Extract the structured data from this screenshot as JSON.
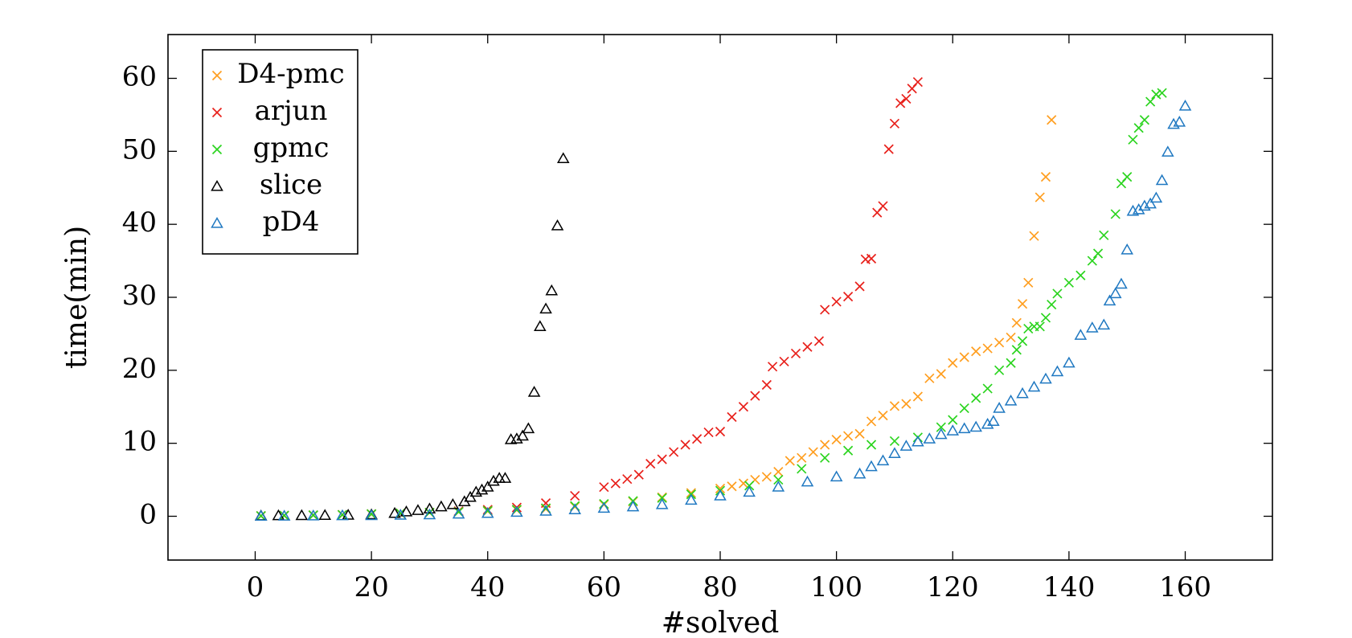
{
  "chart_data": {
    "type": "scatter",
    "title": "",
    "xlabel": "#solved",
    "ylabel": "time(min)",
    "xlim": [
      -15,
      175
    ],
    "ylim": [
      -6,
      66
    ],
    "xticks": [
      0,
      20,
      40,
      60,
      80,
      100,
      120,
      140,
      160
    ],
    "yticks": [
      0,
      10,
      20,
      30,
      40,
      50,
      60
    ],
    "x_tick_labels": [
      "0",
      "20",
      "40",
      "60",
      "80",
      "100",
      "120",
      "140",
      "160"
    ],
    "y_tick_labels": [
      "0",
      "10",
      "20",
      "30",
      "40",
      "50",
      "60"
    ],
    "grid": false,
    "legend_position": "top-left",
    "series": [
      {
        "name": "D4-pmc",
        "color": "#ff9e1f",
        "marker": "cross",
        "x": [
          1,
          5,
          10,
          15,
          20,
          25,
          30,
          35,
          40,
          45,
          50,
          55,
          60,
          65,
          70,
          75,
          80,
          82,
          84,
          86,
          88,
          90,
          92,
          94,
          96,
          98,
          100,
          102,
          104,
          106,
          108,
          110,
          112,
          114,
          116,
          118,
          120,
          122,
          124,
          126,
          128,
          130,
          131,
          132,
          133,
          134,
          135,
          136,
          137
        ],
        "y": [
          0.05,
          0.1,
          0.15,
          0.2,
          0.3,
          0.4,
          0.5,
          0.6,
          0.7,
          0.85,
          1.0,
          1.3,
          1.6,
          2.0,
          2.6,
          3.2,
          3.8,
          4.1,
          4.5,
          5.0,
          5.4,
          6.1,
          7.6,
          8.0,
          8.8,
          9.8,
          10.5,
          11.0,
          11.3,
          13.0,
          13.8,
          15.1,
          15.4,
          16.4,
          18.9,
          19.5,
          21.0,
          21.8,
          22.6,
          23.0,
          23.8,
          24.5,
          26.5,
          29.1,
          32.0,
          38.4,
          43.7,
          46.5,
          54.3
        ]
      },
      {
        "name": "arjun",
        "color": "#e8201b",
        "marker": "cross",
        "x": [
          1,
          5,
          10,
          15,
          20,
          25,
          30,
          35,
          40,
          45,
          50,
          55,
          60,
          62,
          64,
          66,
          68,
          70,
          72,
          74,
          76,
          78,
          80,
          82,
          84,
          86,
          88,
          89,
          91,
          93,
          95,
          97,
          98,
          100,
          102,
          104,
          105,
          106,
          107,
          108,
          109,
          110,
          111,
          112,
          113,
          114
        ],
        "y": [
          0.05,
          0.1,
          0.15,
          0.2,
          0.3,
          0.4,
          0.5,
          0.7,
          0.9,
          1.2,
          1.8,
          2.8,
          4.0,
          4.5,
          5.1,
          5.7,
          7.2,
          7.8,
          8.8,
          9.8,
          10.6,
          11.5,
          11.6,
          13.6,
          15.0,
          16.5,
          18.0,
          20.5,
          21.2,
          22.3,
          23.2,
          24.0,
          28.3,
          29.4,
          30.1,
          31.5,
          35.2,
          35.3,
          41.6,
          42.5,
          50.3,
          53.8,
          56.6,
          57.2,
          58.6,
          59.5
        ]
      },
      {
        "name": "gpmc",
        "color": "#2bd41f",
        "marker": "cross",
        "x": [
          1,
          5,
          10,
          15,
          20,
          25,
          30,
          35,
          40,
          45,
          50,
          55,
          60,
          65,
          70,
          75,
          80,
          85,
          90,
          94,
          98,
          102,
          106,
          110,
          114,
          118,
          120,
          122,
          124,
          126,
          128,
          130,
          131,
          132,
          133,
          134,
          135,
          136,
          137,
          138,
          140,
          142,
          144,
          145,
          146,
          148,
          149,
          150,
          151,
          152,
          153,
          154,
          155,
          156
        ],
        "y": [
          0.05,
          0.1,
          0.15,
          0.2,
          0.3,
          0.4,
          0.5,
          0.6,
          0.75,
          0.9,
          1.1,
          1.4,
          1.7,
          2.1,
          2.5,
          3.0,
          3.5,
          4.2,
          5.0,
          6.5,
          8.0,
          9.0,
          9.8,
          10.3,
          10.8,
          12.2,
          13.2,
          14.8,
          16.2,
          17.5,
          20.0,
          21.0,
          22.8,
          24.0,
          25.7,
          26.0,
          26.0,
          27.2,
          29.0,
          30.5,
          32.0,
          33.0,
          35.0,
          36.0,
          38.5,
          41.4,
          45.6,
          46.5,
          51.6,
          53.2,
          54.3,
          56.8,
          57.8,
          58.0
        ]
      },
      {
        "name": "slice",
        "color": "#000000",
        "marker": "triangle",
        "x": [
          1,
          4,
          8,
          12,
          16,
          20,
          24,
          26,
          28,
          30,
          32,
          34,
          36,
          37,
          38,
          39,
          40,
          41,
          42,
          43,
          44,
          45,
          46,
          47,
          48,
          49,
          50,
          51,
          52,
          53
        ],
        "y": [
          0.05,
          0.08,
          0.1,
          0.12,
          0.15,
          0.2,
          0.4,
          0.6,
          0.8,
          1.0,
          1.3,
          1.6,
          2.0,
          2.6,
          3.3,
          3.6,
          4.0,
          4.8,
          5.2,
          5.2,
          10.5,
          10.6,
          11.0,
          12.0,
          17.0,
          26.0,
          28.4,
          30.9,
          39.8,
          49.0
        ]
      },
      {
        "name": "pD4",
        "color": "#1f78c1",
        "marker": "triangle",
        "x": [
          1,
          5,
          10,
          15,
          20,
          25,
          30,
          35,
          40,
          45,
          50,
          55,
          60,
          65,
          70,
          75,
          80,
          85,
          90,
          95,
          100,
          104,
          106,
          108,
          110,
          112,
          114,
          116,
          118,
          120,
          122,
          124,
          126,
          127,
          128,
          130,
          132,
          134,
          136,
          138,
          140,
          142,
          144,
          146,
          147,
          148,
          149,
          150,
          151,
          152,
          153,
          154,
          155,
          156,
          157,
          158,
          159,
          160
        ],
        "y": [
          0.02,
          0.03,
          0.05,
          0.08,
          0.1,
          0.15,
          0.2,
          0.3,
          0.4,
          0.55,
          0.7,
          0.9,
          1.1,
          1.3,
          1.6,
          2.2,
          2.8,
          3.3,
          4.0,
          4.7,
          5.4,
          5.8,
          6.8,
          7.6,
          8.6,
          9.6,
          10.2,
          10.6,
          11.2,
          11.7,
          12.0,
          12.2,
          12.6,
          13.0,
          14.8,
          15.8,
          16.8,
          17.7,
          18.8,
          19.8,
          21.0,
          24.8,
          25.8,
          26.2,
          29.5,
          30.5,
          31.8,
          36.5,
          41.8,
          42.0,
          42.5,
          42.8,
          43.6,
          46.0,
          49.9,
          53.7,
          54.0,
          56.2
        ]
      }
    ]
  }
}
